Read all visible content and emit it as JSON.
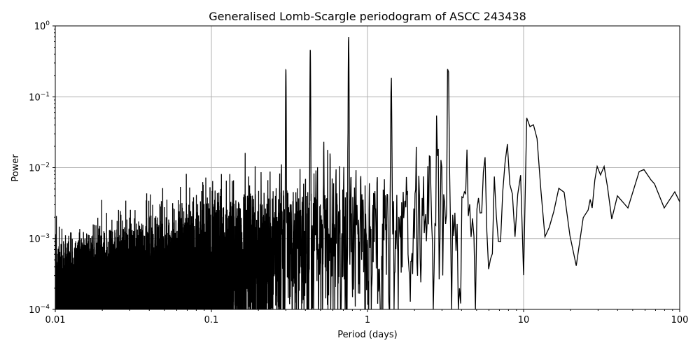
{
  "chart_data": {
    "type": "line",
    "title": "Generalised Lomb-Scargle periodogram of ASCC 243438",
    "xlabel": "Period (days)",
    "ylabel": "Power",
    "xscale": "log",
    "yscale": "log",
    "xlim": [
      0.01,
      100
    ],
    "ylim": [
      0.0001,
      1
    ],
    "grid": true,
    "line_color": "#000000",
    "grid_color": "#b0b0b0",
    "x_ticks": [
      {
        "value": 0.01,
        "label": "0.01"
      },
      {
        "value": 0.1,
        "label": "0.1"
      },
      {
        "value": 1,
        "label": "1"
      },
      {
        "value": 10,
        "label": "10"
      },
      {
        "value": 100,
        "label": "100"
      }
    ],
    "y_ticks": [
      {
        "value": 0.0001,
        "base": "10",
        "exp": "−4"
      },
      {
        "value": 0.001,
        "base": "10",
        "exp": "−3"
      },
      {
        "value": 0.01,
        "base": "10",
        "exp": "−2"
      },
      {
        "value": 0.1,
        "base": "10",
        "exp": "−1"
      },
      {
        "value": 1,
        "base": "10",
        "exp": "0"
      }
    ],
    "peaks": [
      {
        "period": 0.3,
        "power": 0.244
      },
      {
        "period": 0.43,
        "power": 0.47
      },
      {
        "period": 0.757,
        "power": 0.73
      },
      {
        "period": 1.42,
        "power": 0.2
      },
      {
        "period": 3.28,
        "power": 0.44
      },
      {
        "period": 5.6,
        "power": 0.023
      }
    ],
    "noise_level": [
      {
        "period": 0.01,
        "power": 5e-05
      },
      {
        "period": 0.1,
        "power": 0.0004
      },
      {
        "period": 1,
        "power": 0.0018
      },
      {
        "period": 5,
        "power": 0.004
      },
      {
        "period": 25,
        "power": 0.004
      }
    ],
    "long_period_curve": [
      {
        "period": 25.9,
        "power": 0.00252
      },
      {
        "period": 26.7,
        "power": 0.00356
      },
      {
        "period": 27.5,
        "power": 0.0027
      },
      {
        "period": 28.6,
        "power": 0.0067
      },
      {
        "period": 29.6,
        "power": 0.0104
      },
      {
        "period": 31.1,
        "power": 0.0079
      },
      {
        "period": 32.8,
        "power": 0.0104
      },
      {
        "period": 34.5,
        "power": 0.0053
      },
      {
        "period": 36.7,
        "power": 0.00188
      },
      {
        "period": 39.9,
        "power": 0.004
      },
      {
        "period": 46.6,
        "power": 0.0027
      },
      {
        "period": 55.0,
        "power": 0.0088
      },
      {
        "period": 59.0,
        "power": 0.0094
      },
      {
        "period": 65.5,
        "power": 0.0067
      },
      {
        "period": 69.0,
        "power": 0.0059
      },
      {
        "period": 79.6,
        "power": 0.0027
      },
      {
        "period": 93.0,
        "power": 0.00456
      },
      {
        "period": 100,
        "power": 0.0033
      }
    ]
  }
}
